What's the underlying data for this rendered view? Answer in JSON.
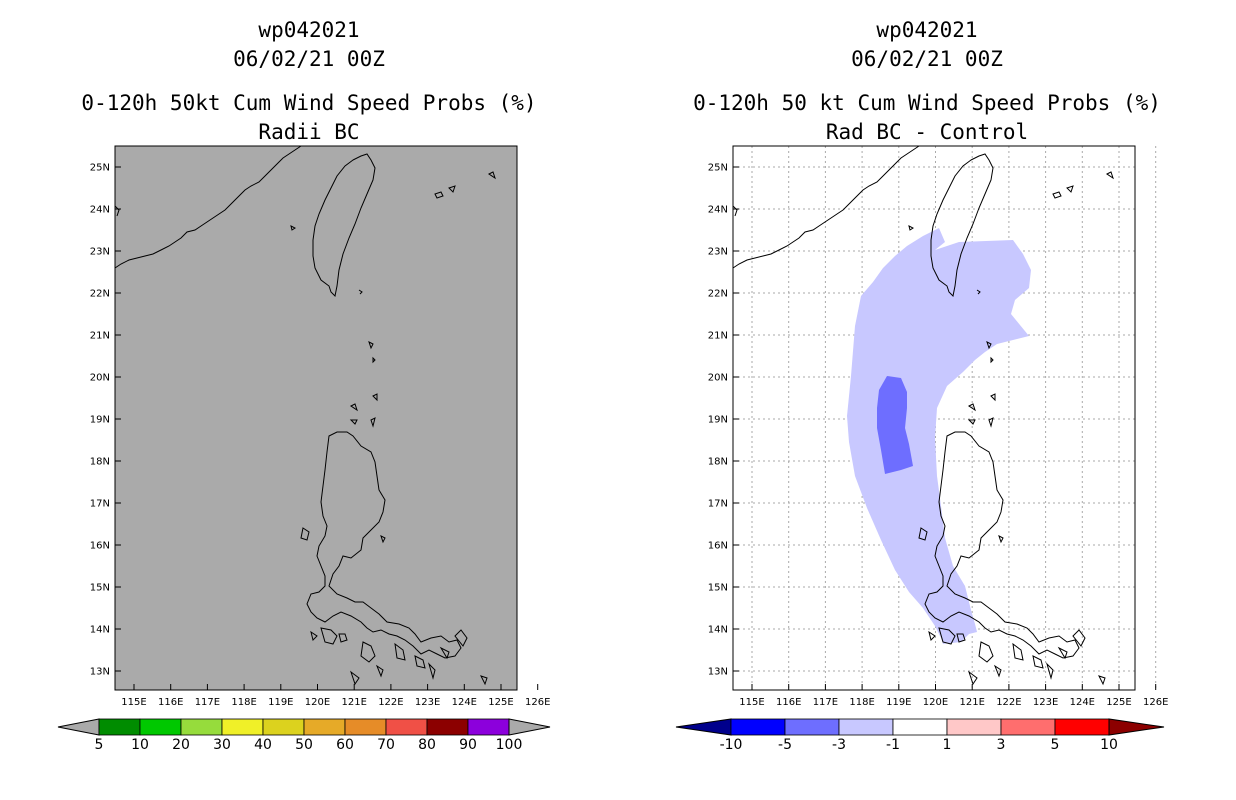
{
  "left_panel": {
    "storm_id": "wp042021",
    "datetime": "06/02/21 00Z",
    "title": "0-120h 50kt Cum Wind Speed Probs (%)",
    "subtitle": "Radii BC",
    "lat_labels": [
      "25N",
      "24N",
      "23N",
      "22N",
      "21N",
      "20N",
      "19N",
      "18N",
      "17N",
      "16N",
      "15N",
      "14N",
      "13N"
    ],
    "lon_labels": [
      "115E",
      "116E",
      "117E",
      "118E",
      "119E",
      "120E",
      "121E",
      "122E",
      "123E",
      "124E",
      "125E",
      "126E"
    ],
    "colorbar": {
      "labels": [
        "5",
        "10",
        "20",
        "30",
        "40",
        "50",
        "60",
        "70",
        "80",
        "90",
        "100"
      ],
      "colors": [
        "#008c00",
        "#00c800",
        "#96dc3c",
        "#f0f028",
        "#dcd21e",
        "#e6aa28",
        "#e68c28",
        "#f05046",
        "#8c0000",
        "#8c00dc"
      ],
      "end_color": "#aaaaaa"
    },
    "background_color": "#aaaaaa"
  },
  "right_panel": {
    "storm_id": "wp042021",
    "datetime": "06/02/21 00Z",
    "title": "0-120h 50 kt Cum Wind Speed Probs (%)",
    "subtitle": "Rad BC - Control",
    "lat_labels": [
      "25N",
      "24N",
      "23N",
      "22N",
      "21N",
      "20N",
      "19N",
      "18N",
      "17N",
      "16N",
      "15N",
      "14N",
      "13N"
    ],
    "lon_labels": [
      "115E",
      "116E",
      "117E",
      "118E",
      "119E",
      "120E",
      "121E",
      "122E",
      "123E",
      "124E",
      "125E",
      "126E"
    ],
    "colorbar": {
      "labels": [
        "-10",
        "-5",
        "-3",
        "-1",
        "1",
        "3",
        "5",
        "10"
      ],
      "colors": [
        "#0000ff",
        "#6e6eff",
        "#c8c8ff",
        "#ffffff",
        "#ffc8c8",
        "#ff6e6e",
        "#ff0000"
      ],
      "low_end_color": "#00008c",
      "high_end_color": "#8c0000"
    },
    "shading": {
      "light_color": "#c8c8ff",
      "dark_color": "#6e6eff",
      "light_range": "-3 to -1",
      "dark_range": "-5 to -3"
    }
  }
}
